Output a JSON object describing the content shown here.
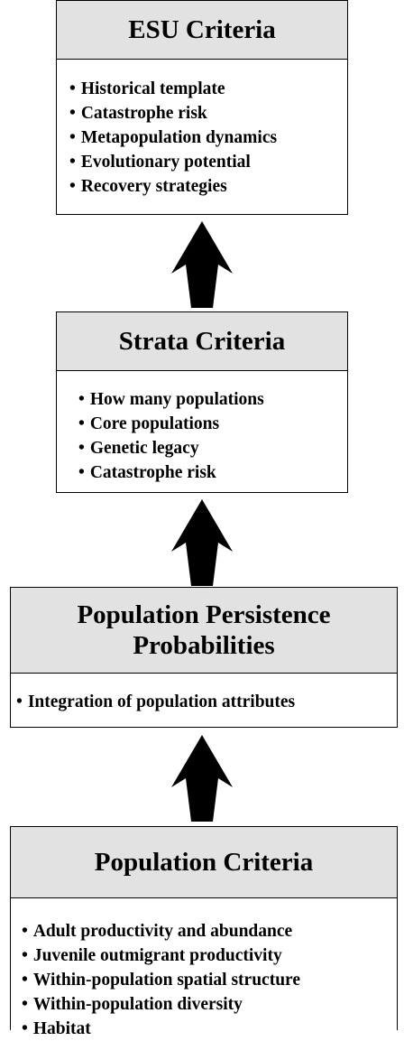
{
  "boxes": [
    {
      "title": "ESU Criteria",
      "items": [
        "Historical template",
        "Catastrophe risk",
        "Metapopulation dynamics",
        "Evolutionary potential",
        "Recovery strategies"
      ]
    },
    {
      "title": "Strata Criteria",
      "items": [
        "How many populations",
        "Core populations",
        "Genetic legacy",
        "Catastrophe risk"
      ]
    },
    {
      "title": "Population Persistence Probabilities",
      "items": [
        "Integration of population attributes"
      ]
    },
    {
      "title": "Population Criteria",
      "items": [
        "Adult productivity and abundance",
        "Juvenile outmigrant productivity",
        "Within-population spatial structure",
        "Within-population diversity",
        "Habitat"
      ]
    }
  ]
}
